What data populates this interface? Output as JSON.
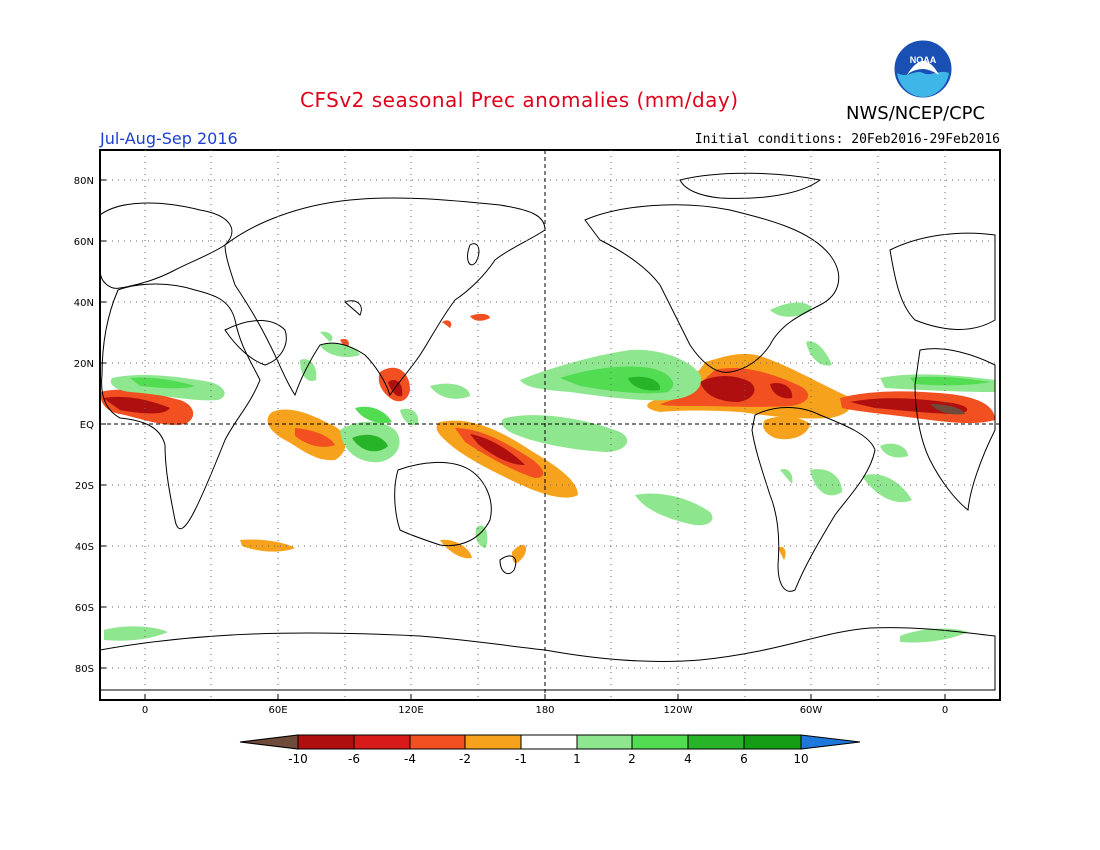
{
  "title": "CFSv2 seasonal Prec anomalies (mm/day)",
  "organization": "NWS/NCEP/CPC",
  "logo_text": "NOAA",
  "period": "Jul-Aug-Sep 2016",
  "initial_conditions": "Initial conditions: 20Feb2016-29Feb2016",
  "map": {
    "projection": "cylindrical equidistant",
    "lon_range": [
      -20,
      380
    ],
    "lat_range": [
      -90,
      90
    ],
    "lat_ticks": [
      "80N",
      "60N",
      "40N",
      "20N",
      "EQ",
      "20S",
      "40S",
      "60S",
      "80S"
    ],
    "lon_ticks": [
      "0",
      "60E",
      "120E",
      "180",
      "120W",
      "60W",
      "0"
    ],
    "grid": "dotted, 20 degree",
    "reference_lines": [
      "equator",
      "dateline"
    ]
  },
  "colorbar": {
    "labels": [
      "-10",
      "-6",
      "-4",
      "-2",
      "-1",
      "1",
      "2",
      "4",
      "6",
      "10"
    ],
    "colors": [
      "#6e4b3a",
      "#b00f0f",
      "#d91a1a",
      "#f25020",
      "#f7a21c",
      "#ffffff",
      "#8ee68e",
      "#52dc52",
      "#28b428",
      "#149c14",
      "#1e78dc"
    ]
  }
}
